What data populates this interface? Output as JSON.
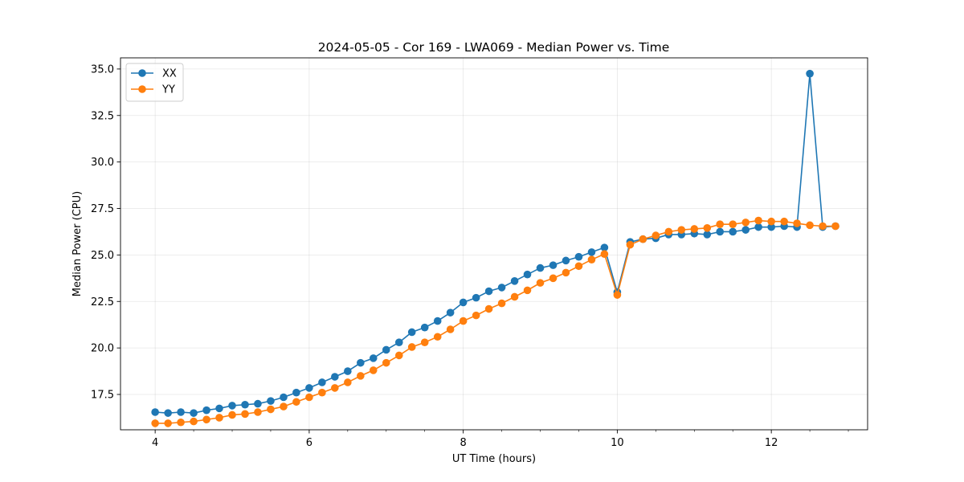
{
  "chart_data": {
    "type": "line",
    "title": "2024-05-05 - Cor 169 - LWA069 - Median Power vs. Time",
    "xlabel": "UT Time (hours)",
    "ylabel": "Median Power (CPU)",
    "xlim": [
      3.55,
      13.25
    ],
    "ylim": [
      15.6,
      35.6
    ],
    "xticks": [
      4,
      6,
      8,
      10,
      12
    ],
    "xtick_labels": [
      "4",
      "6",
      "8",
      "10",
      "12"
    ],
    "yticks": [
      17.5,
      20.0,
      22.5,
      25.0,
      27.5,
      30.0,
      32.5,
      35.0
    ],
    "ytick_labels": [
      "17.5",
      "20.0",
      "22.5",
      "25.0",
      "27.5",
      "30.0",
      "32.5",
      "35.0"
    ],
    "grid": true,
    "legend_position": "top-left",
    "x": [
      4.0,
      4.167,
      4.333,
      4.5,
      4.667,
      4.833,
      5.0,
      5.167,
      5.333,
      5.5,
      5.667,
      5.833,
      6.0,
      6.167,
      6.333,
      6.5,
      6.667,
      6.833,
      7.0,
      7.167,
      7.333,
      7.5,
      7.667,
      7.833,
      8.0,
      8.167,
      8.333,
      8.5,
      8.667,
      8.833,
      9.0,
      9.167,
      9.333,
      9.5,
      9.667,
      9.833,
      10.0,
      10.167,
      10.333,
      10.5,
      10.667,
      10.833,
      11.0,
      11.167,
      11.333,
      11.5,
      11.667,
      11.833,
      12.0,
      12.167,
      12.333,
      12.5,
      12.667,
      12.833
    ],
    "series": [
      {
        "name": "XX",
        "color": "#1f77b4",
        "values": [
          16.55,
          16.5,
          16.55,
          16.5,
          16.65,
          16.75,
          16.9,
          16.95,
          17.0,
          17.15,
          17.35,
          17.6,
          17.85,
          18.15,
          18.45,
          18.75,
          19.2,
          19.45,
          19.9,
          20.3,
          20.85,
          21.1,
          21.45,
          21.9,
          22.45,
          22.7,
          23.05,
          23.25,
          23.6,
          23.95,
          24.3,
          24.45,
          24.7,
          24.9,
          25.15,
          25.4,
          23.0,
          25.7,
          25.85,
          25.9,
          26.1,
          26.1,
          26.15,
          26.1,
          26.25,
          26.25,
          26.35,
          26.5,
          26.5,
          26.55,
          26.5,
          34.75,
          26.5,
          26.55
        ]
      },
      {
        "name": "YY",
        "color": "#ff7f0e",
        "values": [
          15.95,
          15.95,
          16.0,
          16.05,
          16.15,
          16.25,
          16.4,
          16.45,
          16.55,
          16.7,
          16.85,
          17.1,
          17.35,
          17.6,
          17.85,
          18.15,
          18.5,
          18.8,
          19.2,
          19.6,
          20.05,
          20.3,
          20.6,
          21.0,
          21.45,
          21.75,
          22.1,
          22.4,
          22.75,
          23.1,
          23.5,
          23.75,
          24.05,
          24.4,
          24.75,
          25.05,
          22.85,
          25.55,
          25.85,
          26.05,
          26.25,
          26.35,
          26.4,
          26.45,
          26.65,
          26.65,
          26.75,
          26.85,
          26.8,
          26.8,
          26.7,
          26.6,
          26.55,
          26.55
        ]
      }
    ]
  }
}
